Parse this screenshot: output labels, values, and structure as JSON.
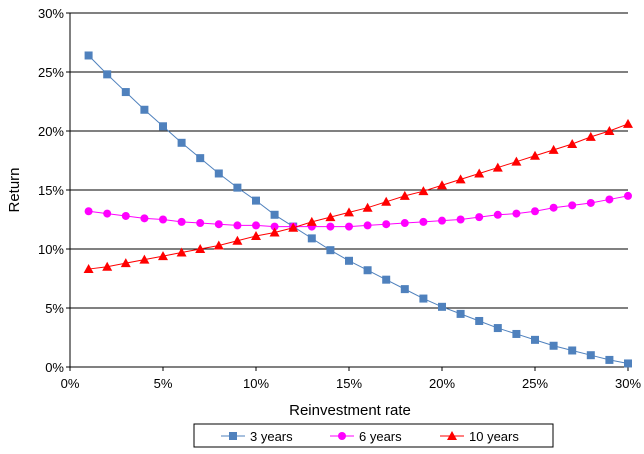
{
  "chart_data": {
    "type": "line",
    "xlabel": "Reinvestment rate",
    "ylabel": "Return",
    "xlim": [
      0,
      30
    ],
    "ylim": [
      0,
      30
    ],
    "x_ticks": [
      "0%",
      "5%",
      "10%",
      "15%",
      "20%",
      "25%",
      "30%"
    ],
    "y_ticks": [
      "0%",
      "5%",
      "10%",
      "15%",
      "20%",
      "25%",
      "30%"
    ],
    "grid": "horizontal",
    "legend_position": "bottom",
    "x": [
      1,
      2,
      3,
      4,
      5,
      6,
      7,
      8,
      9,
      10,
      11,
      12,
      13,
      14,
      15,
      16,
      17,
      18,
      19,
      20,
      21,
      22,
      23,
      24,
      25,
      26,
      27,
      28,
      29,
      30
    ],
    "series": [
      {
        "name": "3 years",
        "color": "#4f81bd",
        "marker": "square",
        "values": [
          26.4,
          24.8,
          23.3,
          21.8,
          20.4,
          19.0,
          17.7,
          16.4,
          15.2,
          14.1,
          12.9,
          11.9,
          10.9,
          9.9,
          9.0,
          8.2,
          7.4,
          6.6,
          5.8,
          5.1,
          4.5,
          3.9,
          3.3,
          2.8,
          2.3,
          1.8,
          1.4,
          1.0,
          0.6,
          0.3
        ]
      },
      {
        "name": "6 years",
        "color": "#ff00ff",
        "marker": "circle",
        "values": [
          13.2,
          13.0,
          12.8,
          12.6,
          12.5,
          12.3,
          12.2,
          12.1,
          12.0,
          12.0,
          11.9,
          11.9,
          11.9,
          11.9,
          11.9,
          12.0,
          12.1,
          12.2,
          12.3,
          12.4,
          12.5,
          12.7,
          12.9,
          13.0,
          13.2,
          13.5,
          13.7,
          13.9,
          14.2,
          14.5
        ]
      },
      {
        "name": "10 years",
        "color": "#ff0000",
        "marker": "triangle",
        "values": [
          8.3,
          8.5,
          8.8,
          9.1,
          9.4,
          9.7,
          10.0,
          10.3,
          10.7,
          11.1,
          11.4,
          11.8,
          12.3,
          12.7,
          13.1,
          13.5,
          14.0,
          14.5,
          14.9,
          15.4,
          15.9,
          16.4,
          16.9,
          17.4,
          17.9,
          18.4,
          18.9,
          19.5,
          20.0,
          20.6
        ]
      }
    ]
  }
}
